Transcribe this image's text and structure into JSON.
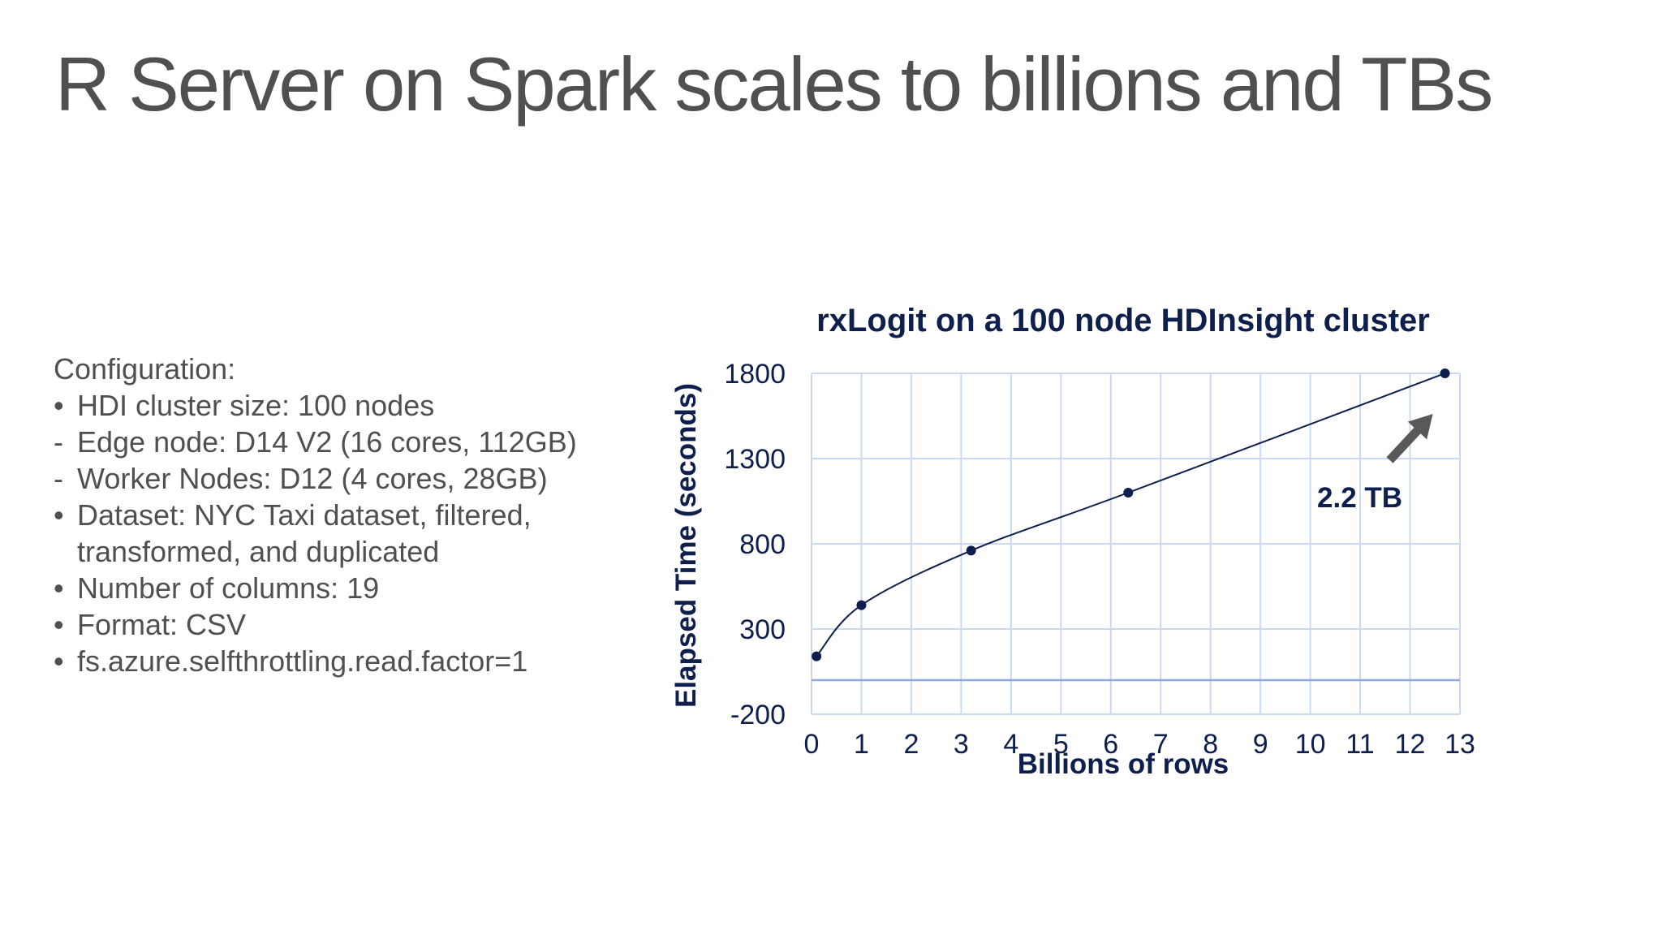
{
  "slide": {
    "title": "R Server on Spark scales to billions and TBs"
  },
  "config": {
    "heading": "Configuration:",
    "items": [
      {
        "marker": "•",
        "text": "HDI cluster size: 100 nodes"
      },
      {
        "marker": "-",
        "text": "Edge node: D14 V2 (16 cores, 112GB)"
      },
      {
        "marker": "-",
        "text": "Worker Nodes: D12 (4 cores, 28GB)"
      },
      {
        "marker": "•",
        "text": "Dataset: NYC Taxi dataset, filtered, transformed, and duplicated"
      },
      {
        "marker": "•",
        "text": "Number of columns: 19"
      },
      {
        "marker": "•",
        "text": "Format: CSV"
      },
      {
        "marker": "•",
        "text": "fs.azure.selfthrottling.read.factor=1"
      }
    ]
  },
  "chart_data": {
    "type": "scatter",
    "title": "rxLogit on a 100 node HDInsight cluster",
    "xlabel": "Billions of rows",
    "ylabel": "Elapsed Time (seconds)",
    "xlim": [
      0,
      13
    ],
    "ylim": [
      -200,
      1800
    ],
    "xticks": [
      "0",
      "1",
      "2",
      "3",
      "4",
      "5",
      "6",
      "7",
      "8",
      "9",
      "10",
      "11",
      "12",
      "13"
    ],
    "yticks": [
      "-200",
      "300",
      "800",
      "1300",
      "1800"
    ],
    "grid": true,
    "legend": "none",
    "line_style": "smooth line with markers",
    "series": [
      {
        "x": [
          0.1,
          1.0,
          3.2,
          6.35,
          12.7
        ],
        "y": [
          140,
          440,
          760,
          1100,
          1800
        ]
      }
    ],
    "annotations": [
      {
        "text": "2.2 TB",
        "arrow_to": {
          "x": 12.7,
          "y": 1800
        }
      }
    ],
    "colors": {
      "text": "#0e1f4d",
      "line": "#0e1f4d",
      "marker": "#0e1f4d",
      "grid": "#c9d9f2",
      "zero_line": "#8fa9dc",
      "arrow": "#595959"
    }
  }
}
